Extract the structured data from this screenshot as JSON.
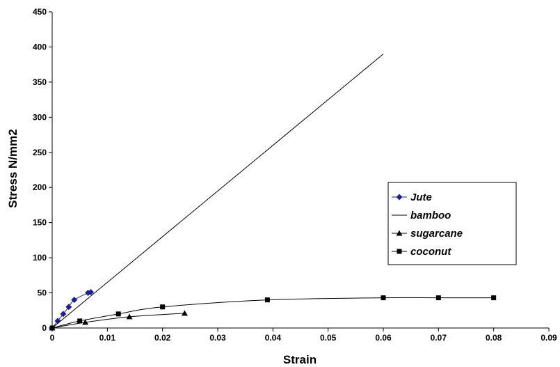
{
  "chart_data": {
    "type": "line",
    "title": "",
    "xlabel": "Strain",
    "ylabel": "Stress N/mm2",
    "xlim": [
      0,
      0.09
    ],
    "ylim": [
      0,
      450
    ],
    "x_ticks": [
      "0",
      "0.01",
      "0.02",
      "0.03",
      "0.04",
      "0.05",
      "0.06",
      "0.07",
      "0.08",
      "0.09"
    ],
    "y_ticks": [
      "0",
      "50",
      "100",
      "150",
      "200",
      "250",
      "300",
      "350",
      "400",
      "450"
    ],
    "grid": false,
    "legend_position": "right",
    "series": [
      {
        "name": "Jute",
        "color": "#1f1f8f",
        "marker": "diamond",
        "smooth": true,
        "points": [
          [
            0,
            0
          ],
          [
            0.001,
            10
          ],
          [
            0.002,
            20
          ],
          [
            0.003,
            30
          ],
          [
            0.004,
            40
          ],
          [
            0.0065,
            50
          ],
          [
            0.007,
            51
          ]
        ]
      },
      {
        "name": "bamboo",
        "color": "#000000",
        "marker": "none",
        "smooth": false,
        "points": [
          [
            0,
            0
          ],
          [
            0.06,
            390
          ]
        ]
      },
      {
        "name": "sugarcane",
        "color": "#000000",
        "marker": "triangle",
        "smooth": true,
        "points": [
          [
            0,
            0
          ],
          [
            0.006,
            8
          ],
          [
            0.014,
            16
          ],
          [
            0.024,
            21
          ]
        ]
      },
      {
        "name": "coconut",
        "color": "#000000",
        "marker": "square",
        "smooth": true,
        "points": [
          [
            0,
            0
          ],
          [
            0.005,
            10
          ],
          [
            0.012,
            20
          ],
          [
            0.02,
            30
          ],
          [
            0.039,
            40
          ],
          [
            0.06,
            43
          ],
          [
            0.07,
            43
          ],
          [
            0.08,
            43
          ]
        ]
      }
    ]
  }
}
